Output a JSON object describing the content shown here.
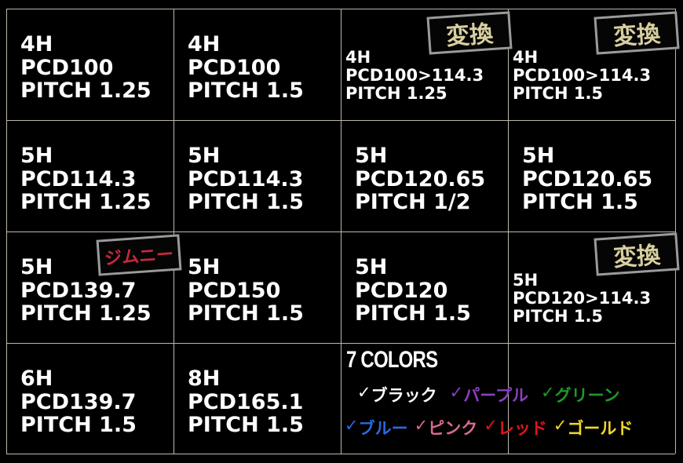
{
  "cells": [
    {
      "lines": [
        "4H",
        "PCD100",
        "PITCH 1.25"
      ]
    },
    {
      "lines": [
        "4H",
        "PCD100",
        "PITCH 1.5"
      ]
    },
    {
      "lines": [
        "4H",
        "PCD100>114.3",
        "PITCH 1.25"
      ],
      "badge": "変換"
    },
    {
      "lines": [
        "4H",
        "PCD100>114.3",
        "PITCH 1.5"
      ],
      "badge": "変換"
    },
    {
      "lines": [
        "5H",
        "PCD114.3",
        "PITCH 1.25"
      ]
    },
    {
      "lines": [
        "5H",
        "PCD114.3",
        "PITCH 1.5"
      ]
    },
    {
      "lines": [
        "5H",
        "PCD120.65",
        "PITCH 1/2"
      ]
    },
    {
      "lines": [
        "5H",
        "PCD120.65",
        "PITCH 1.5"
      ]
    },
    {
      "lines": [
        "5H",
        "PCD139.7",
        "PITCH 1.25"
      ],
      "badge": "ジムニー"
    },
    {
      "lines": [
        "5H",
        "PCD150",
        "PITCH 1.5"
      ]
    },
    {
      "lines": [
        "5H",
        "PCD120",
        "PITCH 1.5"
      ]
    },
    {
      "lines": [
        "5H",
        "PCD120>114.3",
        "PITCH 1.5"
      ],
      "badge": "変換"
    },
    {
      "lines": [
        "6H",
        "PCD139.7",
        "PITCH 1.5"
      ]
    },
    {
      "lines": [
        "8H",
        "PCD165.1",
        "PITCH 1.5"
      ]
    }
  ],
  "colors_section": {
    "title": "7 COLORS",
    "check": "✓",
    "rows": [
      [
        {
          "name": "ブラック",
          "color": "#ffffff"
        },
        {
          "name": "パープル",
          "color": "#8a3fc0"
        },
        {
          "name": "グリーン",
          "color": "#1e9a2a"
        }
      ],
      [
        {
          "name": "ブルー",
          "color": "#2a6adf"
        },
        {
          "name": "ピンク",
          "color": "#d86a8a"
        },
        {
          "name": "レッド",
          "color": "#e0141e"
        },
        {
          "name": "ゴールド",
          "color": "#f0d828"
        }
      ]
    ]
  }
}
